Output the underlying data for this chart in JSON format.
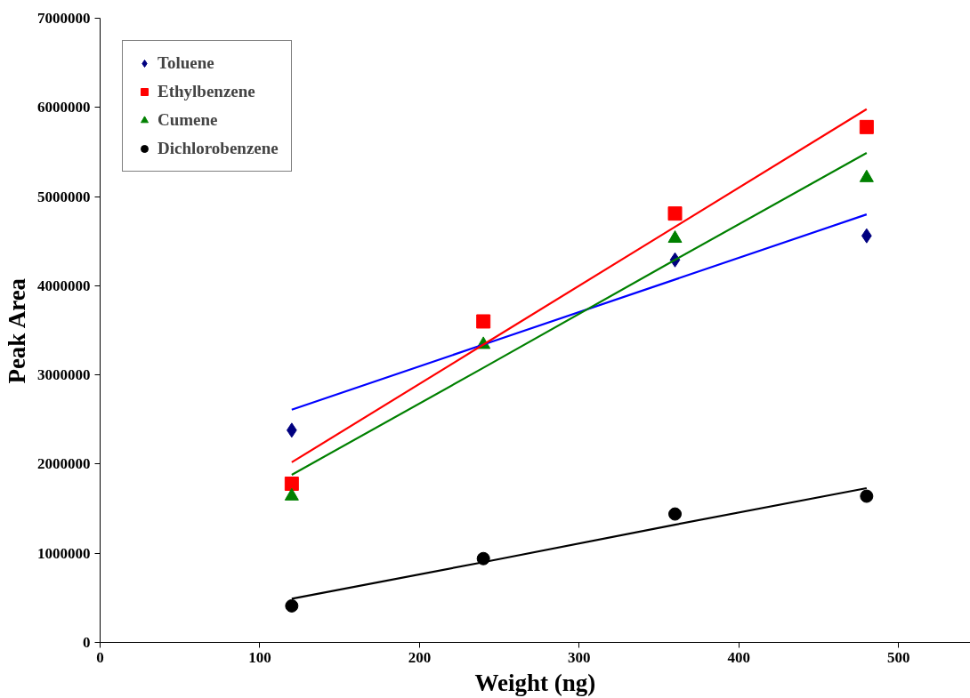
{
  "chart_data": {
    "type": "scatter",
    "xlabel": "Weight (ng)",
    "ylabel": "Peak Area",
    "xlim": [
      0,
      545
    ],
    "ylim": [
      0,
      7000000
    ],
    "xticks": [
      0,
      100,
      200,
      300,
      400,
      500
    ],
    "yticks": [
      0,
      1000000,
      2000000,
      3000000,
      4000000,
      5000000,
      6000000,
      7000000
    ],
    "grid": false,
    "legend": "top left",
    "x": [
      120,
      240,
      360,
      480
    ],
    "series": [
      {
        "name": "Toluene",
        "color": "#000080",
        "marker": "diamond",
        "values": [
          2380000,
          null,
          4290000,
          4560000
        ]
      },
      {
        "name": "Ethylbenzene",
        "color": "#ff0000",
        "marker": "square",
        "values": [
          1780000,
          3600000,
          4810000,
          5780000
        ]
      },
      {
        "name": "Cumene",
        "color": "#008000",
        "marker": "triangle",
        "values": [
          1640000,
          3340000,
          4530000,
          5210000
        ]
      },
      {
        "name": "Dichlorobenzene",
        "color": "#000000",
        "marker": "circle",
        "values": [
          410000,
          940000,
          1440000,
          1640000
        ]
      },
      {
        "type": "line",
        "color": "#0000ff",
        "values": [
          2610000,
          3340000,
          4070000,
          4800000
        ]
      },
      {
        "type": "line",
        "color": "#ff0000",
        "values": [
          2020000,
          3340000,
          4660000,
          5980000
        ]
      },
      {
        "type": "line",
        "color": "#008000",
        "values": [
          1880000,
          3080000,
          4290000,
          5490000
        ]
      },
      {
        "type": "line",
        "color": "#000000",
        "values": [
          490000,
          900000,
          1320000,
          1730000
        ]
      }
    ]
  }
}
